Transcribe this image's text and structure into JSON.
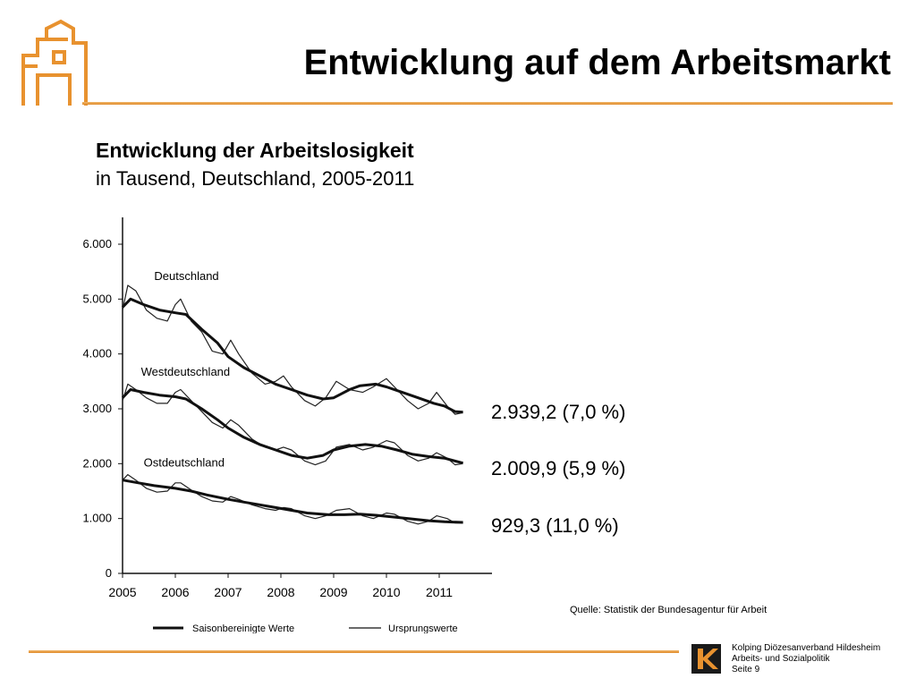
{
  "header": {
    "title": "Entwicklung auf dem Arbeitsmarkt",
    "accent_color": "#e8922f"
  },
  "chart_heading": {
    "title": "Entwicklung der Arbeitslosigkeit",
    "subtitle": "in Tausend, Deutschland, 2005-2011"
  },
  "chart_data": {
    "type": "line",
    "x_ticks": [
      "2005",
      "2006",
      "2007",
      "2008",
      "2009",
      "2010",
      "2011"
    ],
    "y_ticks": [
      "0",
      "1.000",
      "2.000",
      "3.000",
      "4.000",
      "5.000",
      "6.000"
    ],
    "xlim": [
      2005.0,
      2012.0
    ],
    "ylim": [
      0,
      6000
    ],
    "grid": false,
    "legend": {
      "position": "bottom",
      "seasonal_label": "Saisonbereinigte Werte",
      "original_label": "Ursprungswerte"
    },
    "series": [
      {
        "name": "Deutschland",
        "seasonal": [
          [
            2005.0,
            4850
          ],
          [
            2005.15,
            5000
          ],
          [
            2005.4,
            4900
          ],
          [
            2005.7,
            4800
          ],
          [
            2006.0,
            4750
          ],
          [
            2006.2,
            4720
          ],
          [
            2006.5,
            4450
          ],
          [
            2006.8,
            4200
          ],
          [
            2007.0,
            3950
          ],
          [
            2007.3,
            3750
          ],
          [
            2007.6,
            3600
          ],
          [
            2007.9,
            3450
          ],
          [
            2008.2,
            3350
          ],
          [
            2008.5,
            3250
          ],
          [
            2008.8,
            3180
          ],
          [
            2009.0,
            3200
          ],
          [
            2009.3,
            3350
          ],
          [
            2009.5,
            3420
          ],
          [
            2009.8,
            3450
          ],
          [
            2010.0,
            3400
          ],
          [
            2010.3,
            3300
          ],
          [
            2010.6,
            3200
          ],
          [
            2010.9,
            3100
          ],
          [
            2011.1,
            3050
          ],
          [
            2011.3,
            2950
          ],
          [
            2011.45,
            2939
          ]
        ],
        "original": [
          [
            2005.0,
            4800
          ],
          [
            2005.1,
            5250
          ],
          [
            2005.25,
            5150
          ],
          [
            2005.45,
            4800
          ],
          [
            2005.65,
            4650
          ],
          [
            2005.85,
            4600
          ],
          [
            2006.0,
            4900
          ],
          [
            2006.1,
            5000
          ],
          [
            2006.3,
            4600
          ],
          [
            2006.5,
            4400
          ],
          [
            2006.7,
            4050
          ],
          [
            2006.9,
            4000
          ],
          [
            2007.05,
            4250
          ],
          [
            2007.2,
            4000
          ],
          [
            2007.45,
            3650
          ],
          [
            2007.7,
            3450
          ],
          [
            2007.9,
            3500
          ],
          [
            2008.05,
            3600
          ],
          [
            2008.2,
            3400
          ],
          [
            2008.45,
            3150
          ],
          [
            2008.65,
            3050
          ],
          [
            2008.85,
            3200
          ],
          [
            2009.05,
            3500
          ],
          [
            2009.3,
            3350
          ],
          [
            2009.55,
            3300
          ],
          [
            2009.75,
            3400
          ],
          [
            2010.0,
            3550
          ],
          [
            2010.15,
            3400
          ],
          [
            2010.4,
            3150
          ],
          [
            2010.6,
            3000
          ],
          [
            2010.8,
            3100
          ],
          [
            2010.95,
            3300
          ],
          [
            2011.15,
            3050
          ],
          [
            2011.3,
            2900
          ],
          [
            2011.45,
            2930
          ]
        ],
        "annotation": "2.939,2 (7,0 %)"
      },
      {
        "name": "Westdeutschland",
        "seasonal": [
          [
            2005.0,
            3200
          ],
          [
            2005.15,
            3350
          ],
          [
            2005.4,
            3300
          ],
          [
            2005.7,
            3250
          ],
          [
            2006.0,
            3220
          ],
          [
            2006.2,
            3180
          ],
          [
            2006.5,
            3000
          ],
          [
            2006.8,
            2800
          ],
          [
            2007.0,
            2650
          ],
          [
            2007.3,
            2480
          ],
          [
            2007.6,
            2350
          ],
          [
            2007.9,
            2250
          ],
          [
            2008.2,
            2150
          ],
          [
            2008.5,
            2100
          ],
          [
            2008.8,
            2150
          ],
          [
            2009.0,
            2250
          ],
          [
            2009.3,
            2320
          ],
          [
            2009.6,
            2350
          ],
          [
            2009.9,
            2320
          ],
          [
            2010.2,
            2250
          ],
          [
            2010.5,
            2170
          ],
          [
            2010.8,
            2130
          ],
          [
            2011.1,
            2100
          ],
          [
            2011.45,
            2010
          ]
        ],
        "original": [
          [
            2005.0,
            3150
          ],
          [
            2005.1,
            3450
          ],
          [
            2005.25,
            3350
          ],
          [
            2005.45,
            3200
          ],
          [
            2005.65,
            3100
          ],
          [
            2005.85,
            3100
          ],
          [
            2006.0,
            3300
          ],
          [
            2006.1,
            3350
          ],
          [
            2006.3,
            3150
          ],
          [
            2006.5,
            2950
          ],
          [
            2006.7,
            2750
          ],
          [
            2006.9,
            2650
          ],
          [
            2007.05,
            2800
          ],
          [
            2007.2,
            2700
          ],
          [
            2007.45,
            2450
          ],
          [
            2007.7,
            2300
          ],
          [
            2007.9,
            2250
          ],
          [
            2008.05,
            2300
          ],
          [
            2008.2,
            2250
          ],
          [
            2008.45,
            2050
          ],
          [
            2008.65,
            1980
          ],
          [
            2008.85,
            2050
          ],
          [
            2009.05,
            2300
          ],
          [
            2009.3,
            2350
          ],
          [
            2009.55,
            2250
          ],
          [
            2009.75,
            2300
          ],
          [
            2010.0,
            2420
          ],
          [
            2010.15,
            2380
          ],
          [
            2010.4,
            2150
          ],
          [
            2010.6,
            2050
          ],
          [
            2010.8,
            2100
          ],
          [
            2010.95,
            2200
          ],
          [
            2011.15,
            2100
          ],
          [
            2011.3,
            1980
          ],
          [
            2011.45,
            2000
          ]
        ],
        "annotation": "2.009,9 (5,9 %)"
      },
      {
        "name": "Ostdeutschland",
        "seasonal": [
          [
            2005.0,
            1700
          ],
          [
            2005.3,
            1650
          ],
          [
            2005.6,
            1600
          ],
          [
            2006.0,
            1550
          ],
          [
            2006.3,
            1500
          ],
          [
            2006.6,
            1430
          ],
          [
            2007.0,
            1350
          ],
          [
            2007.3,
            1300
          ],
          [
            2007.6,
            1250
          ],
          [
            2007.9,
            1200
          ],
          [
            2008.2,
            1150
          ],
          [
            2008.5,
            1100
          ],
          [
            2008.9,
            1070
          ],
          [
            2009.2,
            1070
          ],
          [
            2009.5,
            1080
          ],
          [
            2009.8,
            1060
          ],
          [
            2010.2,
            1020
          ],
          [
            2010.5,
            990
          ],
          [
            2010.8,
            960
          ],
          [
            2011.1,
            940
          ],
          [
            2011.45,
            929
          ]
        ],
        "original": [
          [
            2005.0,
            1700
          ],
          [
            2005.1,
            1800
          ],
          [
            2005.25,
            1700
          ],
          [
            2005.45,
            1550
          ],
          [
            2005.65,
            1480
          ],
          [
            2005.85,
            1500
          ],
          [
            2006.0,
            1650
          ],
          [
            2006.1,
            1650
          ],
          [
            2006.3,
            1520
          ],
          [
            2006.5,
            1400
          ],
          [
            2006.7,
            1320
          ],
          [
            2006.9,
            1300
          ],
          [
            2007.05,
            1400
          ],
          [
            2007.2,
            1350
          ],
          [
            2007.45,
            1250
          ],
          [
            2007.7,
            1180
          ],
          [
            2007.9,
            1150
          ],
          [
            2008.05,
            1200
          ],
          [
            2008.2,
            1180
          ],
          [
            2008.45,
            1050
          ],
          [
            2008.65,
            1000
          ],
          [
            2008.85,
            1050
          ],
          [
            2009.05,
            1150
          ],
          [
            2009.3,
            1180
          ],
          [
            2009.55,
            1050
          ],
          [
            2009.75,
            1000
          ],
          [
            2010.0,
            1100
          ],
          [
            2010.15,
            1080
          ],
          [
            2010.4,
            950
          ],
          [
            2010.6,
            900
          ],
          [
            2010.8,
            950
          ],
          [
            2010.95,
            1050
          ],
          [
            2011.15,
            1000
          ],
          [
            2011.3,
            920
          ],
          [
            2011.45,
            920
          ]
        ],
        "annotation": "929,3 (11,0 %)"
      }
    ]
  },
  "source": "Quelle: Statistik der Bundesagentur für Arbeit",
  "footer": {
    "organization": "Kolping Diözesanverband Hildesheim",
    "department": "Arbeits- und Sozialpolitik",
    "page": "Seite 9"
  }
}
